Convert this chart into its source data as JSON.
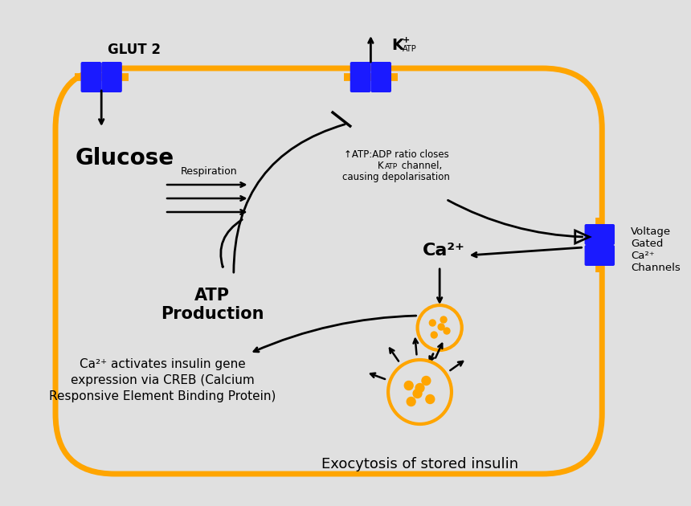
{
  "bg_color": "#e0e0e0",
  "cell_border_color": "#FFA500",
  "cell_lw": 5,
  "blue_color": "#1a1aff",
  "black": "#000000",
  "orange": "#FFA500",
  "glut2_text": "GLUT 2",
  "glucose_text": "Glucose",
  "respiration_text": "Respiration",
  "atp_text": "ATP\nProduction",
  "adp_line1": "↑ATP:ADP ratio closes",
  "adp_line4": "causing depolarisation",
  "ca2_text": "Ca²⁺",
  "vg_text": "Voltage\nGated\nCa²⁺\nChannels",
  "creb_text": "Ca²⁺ activates insulin gene\nexpression via CREB (Calcium\nResponsive Element Binding Protein)",
  "exo_text": "Exocytosis of stored insulin"
}
